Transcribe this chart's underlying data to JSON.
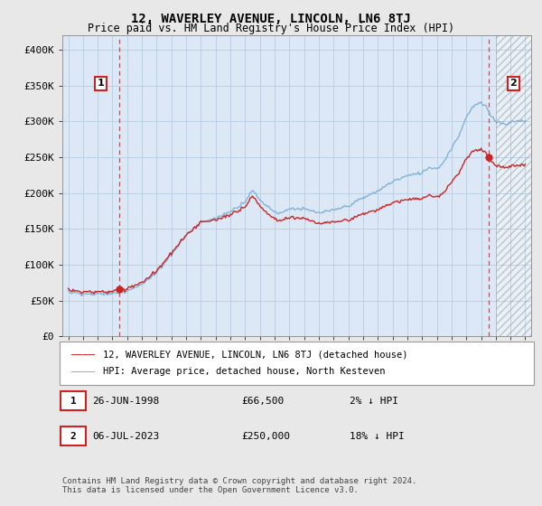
{
  "title": "12, WAVERLEY AVENUE, LINCOLN, LN6 8TJ",
  "subtitle": "Price paid vs. HM Land Registry's House Price Index (HPI)",
  "ylim": [
    0,
    420000
  ],
  "yticks": [
    0,
    50000,
    100000,
    150000,
    200000,
    250000,
    300000,
    350000,
    400000
  ],
  "ytick_labels": [
    "£0",
    "£50K",
    "£100K",
    "£150K",
    "£200K",
    "£250K",
    "£300K",
    "£350K",
    "£400K"
  ],
  "xlim_start": 1994.6,
  "xlim_end": 2026.4,
  "xticks": [
    1995,
    1996,
    1997,
    1998,
    1999,
    2000,
    2001,
    2002,
    2003,
    2004,
    2005,
    2006,
    2007,
    2008,
    2009,
    2010,
    2011,
    2012,
    2013,
    2014,
    2015,
    2016,
    2017,
    2018,
    2019,
    2020,
    2021,
    2022,
    2023,
    2024,
    2025,
    2026
  ],
  "hpi_color": "#7aaed4",
  "price_color": "#cc2222",
  "sale1_x": 1998.49,
  "sale1_y": 66500,
  "sale2_x": 2023.51,
  "sale2_y": 250000,
  "legend_line1": "12, WAVERLEY AVENUE, LINCOLN, LN6 8TJ (detached house)",
  "legend_line2": "HPI: Average price, detached house, North Kesteven",
  "table_row1": [
    "1",
    "26-JUN-1998",
    "£66,500",
    "2% ↓ HPI"
  ],
  "table_row2": [
    "2",
    "06-JUL-2023",
    "£250,000",
    "18% ↓ HPI"
  ],
  "footer": "Contains HM Land Registry data © Crown copyright and database right 2024.\nThis data is licensed under the Open Government Licence v3.0.",
  "bg_color": "#e8e8e8",
  "plot_bg_color": "#dce8f5",
  "grid_color": "#b0c8e0",
  "hatch_start": 2024.0,
  "future_hatch_color": "#c0c0c0"
}
